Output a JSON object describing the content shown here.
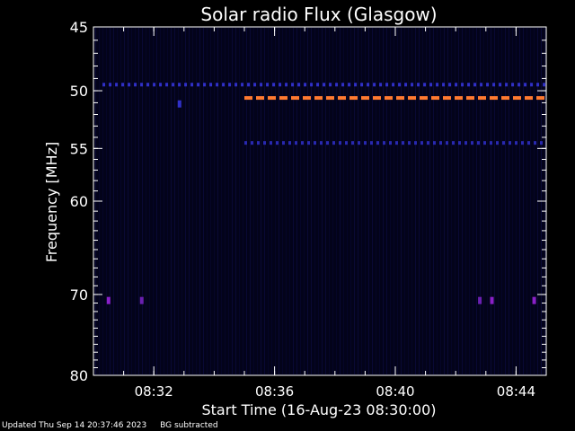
{
  "chart_data": {
    "type": "heatmap",
    "title": "Solar radio Flux (Glasgow)",
    "xlabel": "Start Time (16-Aug-23 08:30:00)",
    "ylabel": "Frequency [MHz]",
    "x_range_minutes": [
      0,
      15
    ],
    "y_range_mhz": [
      45,
      80
    ],
    "y_axis_inverted": true,
    "y_scale": "log",
    "x_ticks": [
      {
        "minutes": 2,
        "label": "08:32"
      },
      {
        "minutes": 6,
        "label": "08:36"
      },
      {
        "minutes": 10,
        "label": "08:40"
      },
      {
        "minutes": 14,
        "label": "08:44"
      }
    ],
    "y_ticks": [
      {
        "mhz": 45,
        "label": "45"
      },
      {
        "mhz": 50,
        "label": "50"
      },
      {
        "mhz": 55,
        "label": "55"
      },
      {
        "mhz": 60,
        "label": "60"
      },
      {
        "mhz": 70,
        "label": "70"
      },
      {
        "mhz": 80,
        "label": "80"
      }
    ],
    "features": [
      {
        "kind": "emission-line",
        "mhz": 49.5,
        "start_minutes": 0.3,
        "end_minutes": 15,
        "color": "#3030c8"
      },
      {
        "kind": "emission-line",
        "mhz": 50.6,
        "start_minutes": 5.0,
        "end_minutes": 15,
        "color": "#ff7a30"
      },
      {
        "kind": "emission-line",
        "mhz": 54.5,
        "start_minutes": 5.0,
        "end_minutes": 15,
        "color": "#2828b0"
      },
      {
        "kind": "spot",
        "mhz": 70.7,
        "minutes": 0.5,
        "color": "#8a20c8"
      },
      {
        "kind": "spot",
        "mhz": 70.7,
        "minutes": 1.6,
        "color": "#6a20b0"
      },
      {
        "kind": "spot",
        "mhz": 70.7,
        "minutes": 12.8,
        "color": "#6a20b0"
      },
      {
        "kind": "spot",
        "mhz": 70.7,
        "minutes": 13.2,
        "color": "#8a20c8"
      },
      {
        "kind": "spot",
        "mhz": 70.7,
        "minutes": 14.6,
        "color": "#8a20c8"
      },
      {
        "kind": "spot",
        "mhz": 51.1,
        "minutes": 2.85,
        "color": "#3030c8"
      }
    ],
    "colors": {
      "background": "#000000",
      "plot_bg": "#03031a",
      "axis": "#ffffff"
    }
  },
  "footer": {
    "updated": "Updated Thu Sep 14 20:37:46 2023",
    "note": "BG subtracted"
  }
}
